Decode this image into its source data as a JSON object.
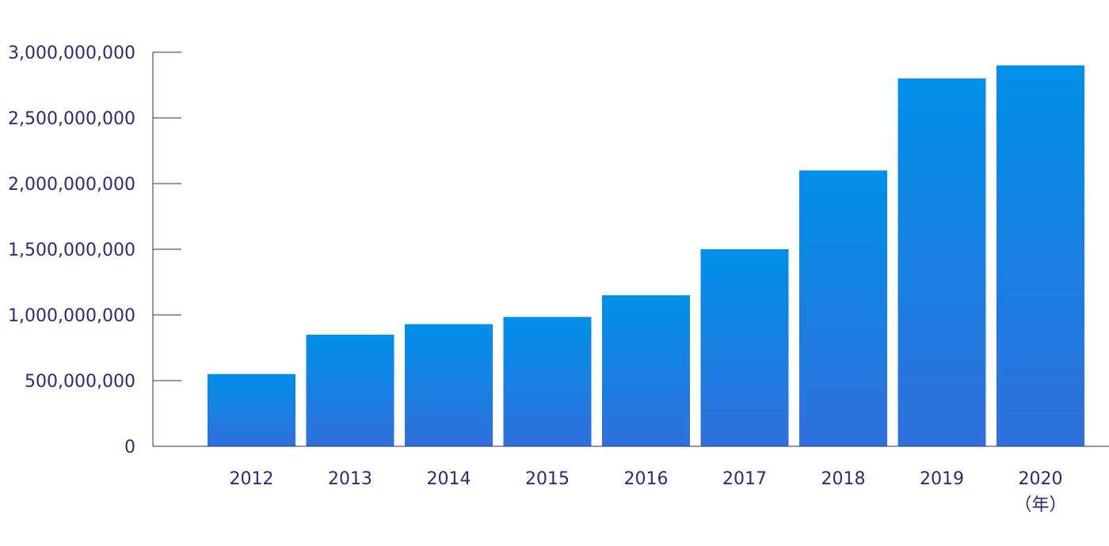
{
  "chart_data": {
    "type": "bar",
    "title": "",
    "xlabel": "",
    "ylabel": "",
    "x_unit_label": "（年）",
    "categories": [
      "2012",
      "2013",
      "2014",
      "2015",
      "2016",
      "2017",
      "2018",
      "2019",
      "2020"
    ],
    "values": [
      550000000,
      850000000,
      930000000,
      985000000,
      1150000000,
      1500000000,
      2100000000,
      2800000000,
      2900000000
    ],
    "ylim": [
      0,
      3000000000
    ],
    "yticks": [
      0,
      500000000,
      1000000000,
      1500000000,
      2000000000,
      2500000000,
      3000000000
    ],
    "ytick_labels": [
      "0",
      "500,000,000",
      "1,000,000,000",
      "1,500,000,000",
      "2,000,000,000",
      "2,500,000,000",
      "3,000,000,000"
    ],
    "grid": false,
    "legend": "none",
    "colors": {
      "bar_top": "#0090e8",
      "bar_bottom": "#3070dc",
      "axis": "#2a2a7e",
      "text": "#2a2a7e"
    }
  }
}
